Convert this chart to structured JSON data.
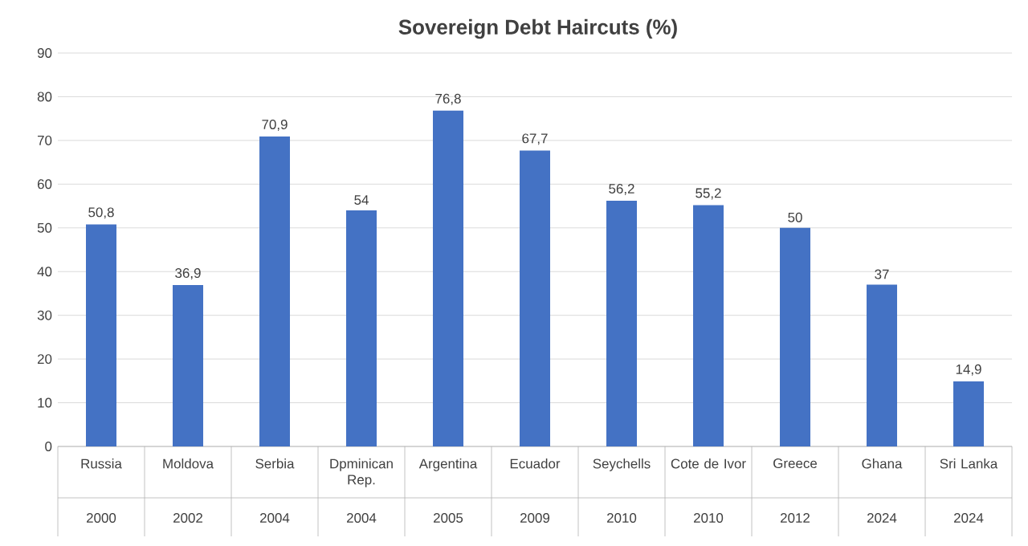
{
  "chart_data": {
    "type": "bar",
    "title": "Sovereign Debt Haircuts (%)",
    "categories": [
      "Russia",
      "Moldova",
      "Serbia",
      "Dpminican Rep.",
      "Argentina",
      "Ecuador",
      "Seychells",
      "Cote de Ivor",
      "Greece",
      "Ghana",
      "Sri Lanka"
    ],
    "values": [
      50.8,
      36.9,
      70.9,
      54,
      76.8,
      67.7,
      56.2,
      55.2,
      50,
      37,
      14.9
    ],
    "value_labels": [
      "50,8",
      "36,9",
      "70,9",
      "54",
      "76,8",
      "67,7",
      "56,2",
      "55,2",
      "50",
      "37",
      "14,9"
    ],
    "color": "#4472c4",
    "ylim": [
      0,
      90
    ],
    "yticks": [
      0,
      10,
      20,
      30,
      40,
      50,
      60,
      70,
      80,
      90
    ],
    "grid": "y",
    "annotations": [
      "2000",
      "2002",
      "2004",
      "2004",
      "2005",
      "2009",
      "2010",
      "2010",
      "2012",
      "2024",
      "2024"
    ]
  }
}
